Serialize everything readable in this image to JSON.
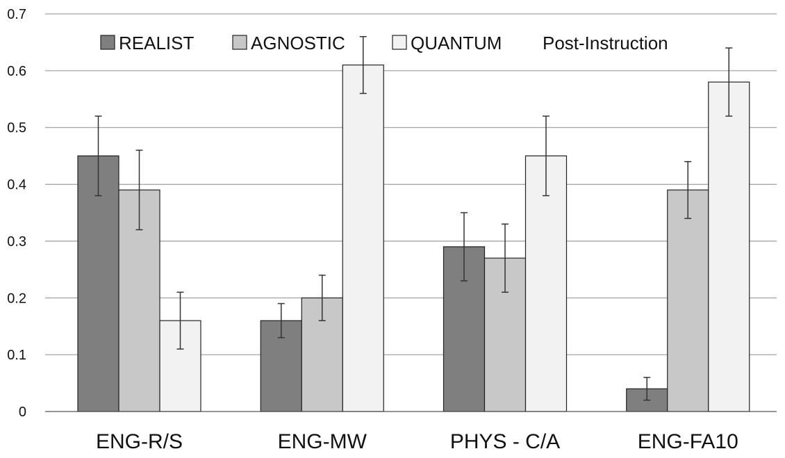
{
  "chart_data": {
    "type": "bar",
    "title": "",
    "xlabel": "",
    "ylabel": "",
    "categories": [
      "ENG-R/S",
      "ENG-MW",
      "PHYS - C/A",
      "ENG-FA10"
    ],
    "ylim": [
      0,
      0.7
    ],
    "yticks": [
      0,
      0.1,
      0.2,
      0.3,
      0.4,
      0.5,
      0.6,
      0.7
    ],
    "ytick_labels": [
      "0",
      "0.1",
      "0.2",
      "0.3",
      "0.4",
      "0.5",
      "0.6",
      "0.7"
    ],
    "grid": true,
    "legend_position": "top",
    "annotation": "Post-Instruction",
    "series": [
      {
        "name": "REALIST",
        "color": "#7f7f7f",
        "values": [
          0.45,
          0.16,
          0.29,
          0.04
        ],
        "errors": [
          0.07,
          0.03,
          0.06,
          0.02
        ]
      },
      {
        "name": "AGNOSTIC",
        "color": "#c8c8c8",
        "values": [
          0.39,
          0.2,
          0.27,
          0.39
        ],
        "errors": [
          0.07,
          0.04,
          0.06,
          0.05
        ]
      },
      {
        "name": "QUANTUM",
        "color": "#f2f2f2",
        "values": [
          0.16,
          0.61,
          0.45,
          0.58
        ],
        "errors": [
          0.05,
          0.05,
          0.07,
          0.06
        ]
      }
    ]
  }
}
